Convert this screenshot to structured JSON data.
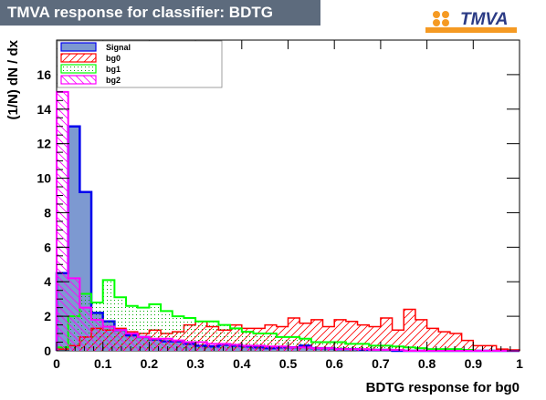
{
  "title": "TMVA response for classifier: BDTG",
  "logo": {
    "text": "TMVA",
    "accent_letter": "T",
    "icon": "tmva-logo-dots"
  },
  "colors": {
    "title_bg": "#5d6b7d",
    "signal_fill": "#7d99d1",
    "signal_line": "#0000ee",
    "bg0": "#ff0000",
    "bg1": "#00ff00",
    "bg2": "#ff00ff",
    "logo_orange": "#f59a23",
    "logo_blue": "#2b3b85"
  },
  "chart_data": {
    "type": "histogram",
    "xlabel": "BDTG response for bg0",
    "ylabel": "(1/N) dN / dx",
    "xlim": [
      0,
      1
    ],
    "ylim": [
      0,
      18
    ],
    "xticks": [
      "0",
      "0.1",
      "0.2",
      "0.3",
      "0.4",
      "0.5",
      "0.6",
      "0.7",
      "0.8",
      "0.9",
      "1"
    ],
    "yticks": [
      "0",
      "2",
      "4",
      "6",
      "8",
      "10",
      "12",
      "14",
      "16"
    ],
    "bin_width": 0.025,
    "legend": {
      "position": "top-left"
    },
    "series": [
      {
        "name": "Signal",
        "style": "solid-fill",
        "values": [
          4.5,
          13.0,
          9.2,
          2.2,
          1.7,
          1.2,
          0.9,
          0.8,
          0.65,
          0.55,
          0.55,
          0.4,
          0.3,
          0.25,
          0.35,
          0.3,
          0.25,
          0.2,
          0.15,
          0.2,
          0.2,
          0.3,
          0.15,
          0.15,
          0.1,
          0.1,
          0.05,
          0.05,
          0.05,
          0,
          0,
          0,
          0,
          0,
          0,
          0,
          0,
          0,
          0,
          0
        ]
      },
      {
        "name": "bg0",
        "style": "hatch-diagonal",
        "values": [
          0.1,
          0.3,
          0.8,
          1.3,
          1.2,
          1.3,
          1.1,
          1.0,
          1.2,
          1.0,
          1.1,
          1.5,
          1.7,
          1.4,
          1.2,
          1.5,
          1.3,
          1.3,
          1.5,
          1.4,
          1.9,
          1.6,
          1.8,
          1.4,
          1.8,
          1.7,
          1.5,
          1.4,
          1.9,
          1.2,
          2.4,
          1.8,
          1.3,
          1.1,
          1.0,
          0.6,
          0.3,
          0.3,
          0.1,
          0.05
        ]
      },
      {
        "name": "bg1",
        "style": "dots",
        "values": [
          0.2,
          2.0,
          3.3,
          2.8,
          4.1,
          3.1,
          2.6,
          2.5,
          2.7,
          2.3,
          2.0,
          1.9,
          1.7,
          1.7,
          1.5,
          1.3,
          1.1,
          1.0,
          1.0,
          0.8,
          0.8,
          0.7,
          0.5,
          0.5,
          0.5,
          0.4,
          0.4,
          0.3,
          0.3,
          0.25,
          0.2,
          0.15,
          0.1,
          0.1,
          0.1,
          0.05,
          0,
          0,
          0,
          0
        ]
      },
      {
        "name": "bg2",
        "style": "hatch-antidiagonal",
        "values": [
          15.0,
          4.2,
          2.5,
          1.8,
          1.4,
          1.2,
          1.0,
          0.8,
          0.7,
          0.7,
          0.6,
          0.5,
          0.5,
          0.4,
          0.4,
          0.35,
          0.3,
          0.3,
          0.25,
          0.25,
          0.2,
          0.2,
          0.15,
          0.15,
          0.1,
          0.1,
          0.1,
          0.05,
          0.05,
          0.05,
          0,
          0,
          0,
          0,
          0,
          0,
          0,
          0,
          0,
          0
        ]
      }
    ]
  }
}
